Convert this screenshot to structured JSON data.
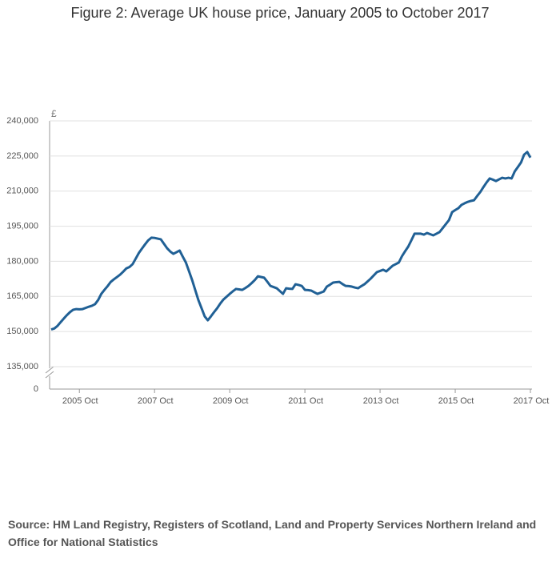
{
  "chart_data": {
    "type": "line",
    "title": "Figure 2: Average UK house price, January 2005 to October 2017",
    "y_label": "£",
    "source": "Source: HM Land Registry, Registers of Scotland, Land and Property Services Northern Ireland and Office for National Statistics",
    "x": [
      "2005 Jan",
      "2005 Feb",
      "2005 Mar",
      "2005 Apr",
      "2005 May",
      "2005 Jun",
      "2005 Jul",
      "2005 Aug",
      "2005 Sep",
      "2005 Oct",
      "2005 Nov",
      "2005 Dec",
      "2006 Jan",
      "2006 Feb",
      "2006 Mar",
      "2006 Apr",
      "2006 May",
      "2006 Jun",
      "2006 Jul",
      "2006 Aug",
      "2006 Sep",
      "2006 Oct",
      "2006 Nov",
      "2006 Dec",
      "2007 Jan",
      "2007 Feb",
      "2007 Mar",
      "2007 Apr",
      "2007 May",
      "2007 Jun",
      "2007 Jul",
      "2007 Aug",
      "2007 Sep",
      "2007 Oct",
      "2007 Nov",
      "2007 Dec",
      "2008 Jan",
      "2008 Feb",
      "2008 Mar",
      "2008 Apr",
      "2008 May",
      "2008 Jun",
      "2008 Jul",
      "2008 Aug",
      "2008 Sep",
      "2008 Oct",
      "2008 Nov",
      "2008 Dec",
      "2009 Jan",
      "2009 Feb",
      "2009 Mar",
      "2009 Apr",
      "2009 May",
      "2009 Jun",
      "2009 Jul",
      "2009 Aug",
      "2009 Sep",
      "2009 Oct",
      "2009 Nov",
      "2009 Dec",
      "2010 Jan",
      "2010 Feb",
      "2010 Mar",
      "2010 Apr",
      "2010 May",
      "2010 Jun",
      "2010 Jul",
      "2010 Aug",
      "2010 Sep",
      "2010 Oct",
      "2010 Nov",
      "2010 Dec",
      "2011 Jan",
      "2011 Feb",
      "2011 Mar",
      "2011 Apr",
      "2011 May",
      "2011 Jun",
      "2011 Jul",
      "2011 Aug",
      "2011 Sep",
      "2011 Oct",
      "2011 Nov",
      "2011 Dec",
      "2012 Jan",
      "2012 Feb",
      "2012 Mar",
      "2012 Apr",
      "2012 May",
      "2012 Jun",
      "2012 Jul",
      "2012 Aug",
      "2012 Sep",
      "2012 Oct",
      "2012 Nov",
      "2012 Dec",
      "2013 Jan",
      "2013 Feb",
      "2013 Mar",
      "2013 Apr",
      "2013 May",
      "2013 Jun",
      "2013 Jul",
      "2013 Aug",
      "2013 Sep",
      "2013 Oct",
      "2013 Nov",
      "2013 Dec",
      "2014 Jan",
      "2014 Feb",
      "2014 Mar",
      "2014 Apr",
      "2014 May",
      "2014 Jun",
      "2014 Jul",
      "2014 Aug",
      "2014 Sep",
      "2014 Oct",
      "2014 Nov",
      "2014 Dec",
      "2015 Jan",
      "2015 Feb",
      "2015 Mar",
      "2015 Apr",
      "2015 May",
      "2015 Jun",
      "2015 Jul",
      "2015 Aug",
      "2015 Sep",
      "2015 Oct",
      "2015 Nov",
      "2015 Dec",
      "2016 Jan",
      "2016 Feb",
      "2016 Mar",
      "2016 Apr",
      "2016 May",
      "2016 Jun",
      "2016 Jul",
      "2016 Aug",
      "2016 Sep",
      "2016 Oct",
      "2016 Nov",
      "2016 Dec",
      "2017 Jan",
      "2017 Feb",
      "2017 Mar",
      "2017 Apr",
      "2017 May",
      "2017 Jun",
      "2017 Jul",
      "2017 Aug",
      "2017 Sep",
      "2017 Oct"
    ],
    "series": [
      {
        "color": "#206095",
        "values": [
          150900,
          151300,
          152400,
          154000,
          155500,
          157000,
          158300,
          159300,
          159600,
          159500,
          159600,
          160100,
          160600,
          161000,
          161700,
          163500,
          166100,
          167800,
          169400,
          171200,
          172300,
          173300,
          174300,
          175600,
          177000,
          177600,
          178800,
          181200,
          183600,
          185500,
          187300,
          189000,
          190100,
          190000,
          189700,
          189400,
          187500,
          185600,
          184200,
          183200,
          183900,
          184600,
          182000,
          179500,
          175800,
          172000,
          167700,
          163400,
          160000,
          156500,
          154800,
          156500,
          158300,
          160000,
          162000,
          163700,
          164900,
          166100,
          167200,
          168200,
          168000,
          167800,
          168600,
          169500,
          170700,
          172000,
          173600,
          173300,
          173000,
          171300,
          169500,
          169000,
          168500,
          167300,
          166100,
          168500,
          168300,
          168200,
          170200,
          169900,
          169500,
          167800,
          167700,
          167500,
          166800,
          166100,
          166600,
          167100,
          169200,
          170000,
          170900,
          171100,
          171200,
          170300,
          169500,
          169400,
          169200,
          168800,
          168500,
          169400,
          170200,
          171400,
          172600,
          174000,
          175400,
          175900,
          176400,
          175700,
          176900,
          178100,
          178800,
          179500,
          182200,
          184300,
          186300,
          189000,
          191800,
          191800,
          191800,
          191400,
          192100,
          191600,
          191100,
          191800,
          192500,
          194200,
          195900,
          197600,
          201000,
          201900,
          202700,
          204100,
          204800,
          205400,
          205800,
          206100,
          207900,
          209600,
          211700,
          213700,
          215400,
          214900,
          214300,
          215000,
          215700,
          215400,
          215700,
          215400,
          218400,
          220300,
          222200,
          225600,
          226700,
          224300
        ]
      }
    ],
    "ylim": [
      135000,
      240000
    ],
    "yticks": [
      0,
      {
        "value": 135000,
        "label": "135,000"
      },
      {
        "value": 150000,
        "label": "150,000"
      },
      {
        "value": 165000,
        "label": "165,000"
      },
      {
        "value": 180000,
        "label": "180,000"
      },
      {
        "value": 195000,
        "label": "195,000"
      },
      {
        "value": 210000,
        "label": "210,000"
      },
      {
        "value": 225000,
        "label": "225,000"
      },
      {
        "value": 240000,
        "label": "240,000"
      }
    ],
    "grid": true
  }
}
